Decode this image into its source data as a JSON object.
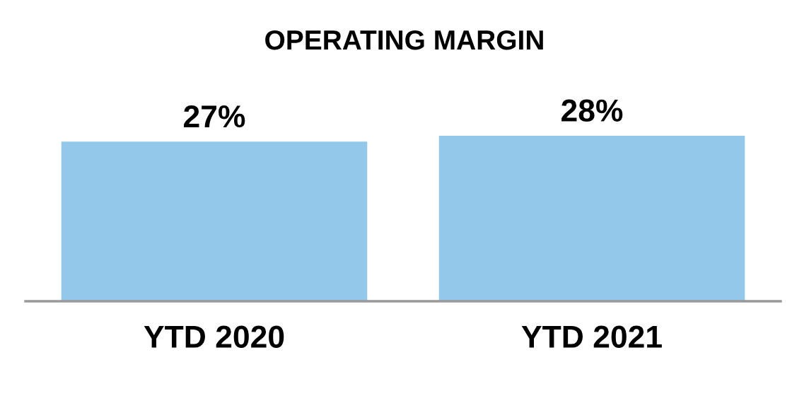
{
  "chart_data": {
    "type": "bar",
    "title": "OPERATING MARGIN",
    "categories": [
      "YTD 2020",
      "YTD 2021"
    ],
    "values": [
      27,
      28
    ],
    "value_labels": [
      "27%",
      "28%"
    ],
    "color": "#93c8ea"
  }
}
